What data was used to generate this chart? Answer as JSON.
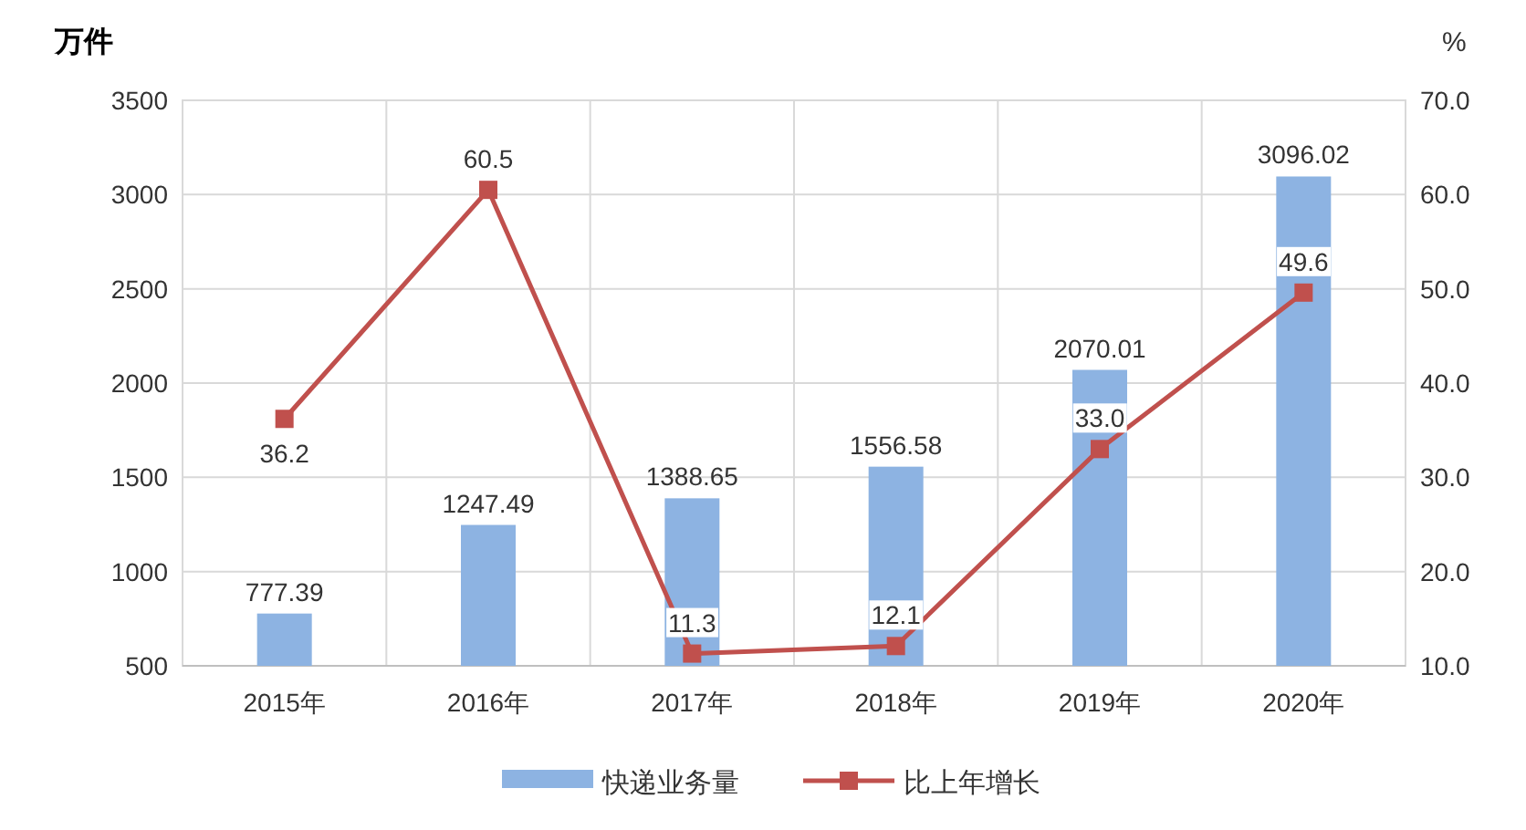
{
  "chart_data": {
    "type": "bar",
    "ylabel": "万件",
    "y2label": "%",
    "categories": [
      "2015年",
      "2016年",
      "2017年",
      "2018年",
      "2019年",
      "2020年"
    ],
    "series": [
      {
        "name": "快递业务量",
        "color": "#8db3e2",
        "values": [
          777.39,
          1247.49,
          1388.65,
          1556.58,
          2070.01,
          3096.02
        ],
        "value_labels": [
          "777.39",
          "1247.49",
          "1388.65",
          "1556.58",
          "2070.01",
          "3096.02"
        ]
      },
      {
        "name": "比上年增长",
        "type": "line",
        "axis": "y2",
        "color": "#c0504d",
        "marker": "square",
        "values": [
          36.2,
          60.5,
          11.3,
          12.1,
          33.0,
          49.6
        ],
        "value_labels": [
          "36.2",
          "60.5",
          "11.3",
          "12.1",
          "33.0",
          "49.6"
        ]
      }
    ],
    "ylim": [
      500,
      3500
    ],
    "yticks": [
      500,
      1000,
      1500,
      2000,
      2500,
      3000,
      3500
    ],
    "y2lim": [
      10,
      70
    ],
    "y2ticks": [
      {
        "value": 10,
        "label": "10.0"
      },
      {
        "value": 20,
        "label": "20.0"
      },
      {
        "value": 30,
        "label": "30.0"
      },
      {
        "value": 40,
        "label": "40.0"
      },
      {
        "value": 50,
        "label": "50.0"
      },
      {
        "value": 60,
        "label": "60.0"
      },
      {
        "value": 70,
        "label": "70.0"
      }
    ],
    "grid": true,
    "legend": "bottom"
  }
}
